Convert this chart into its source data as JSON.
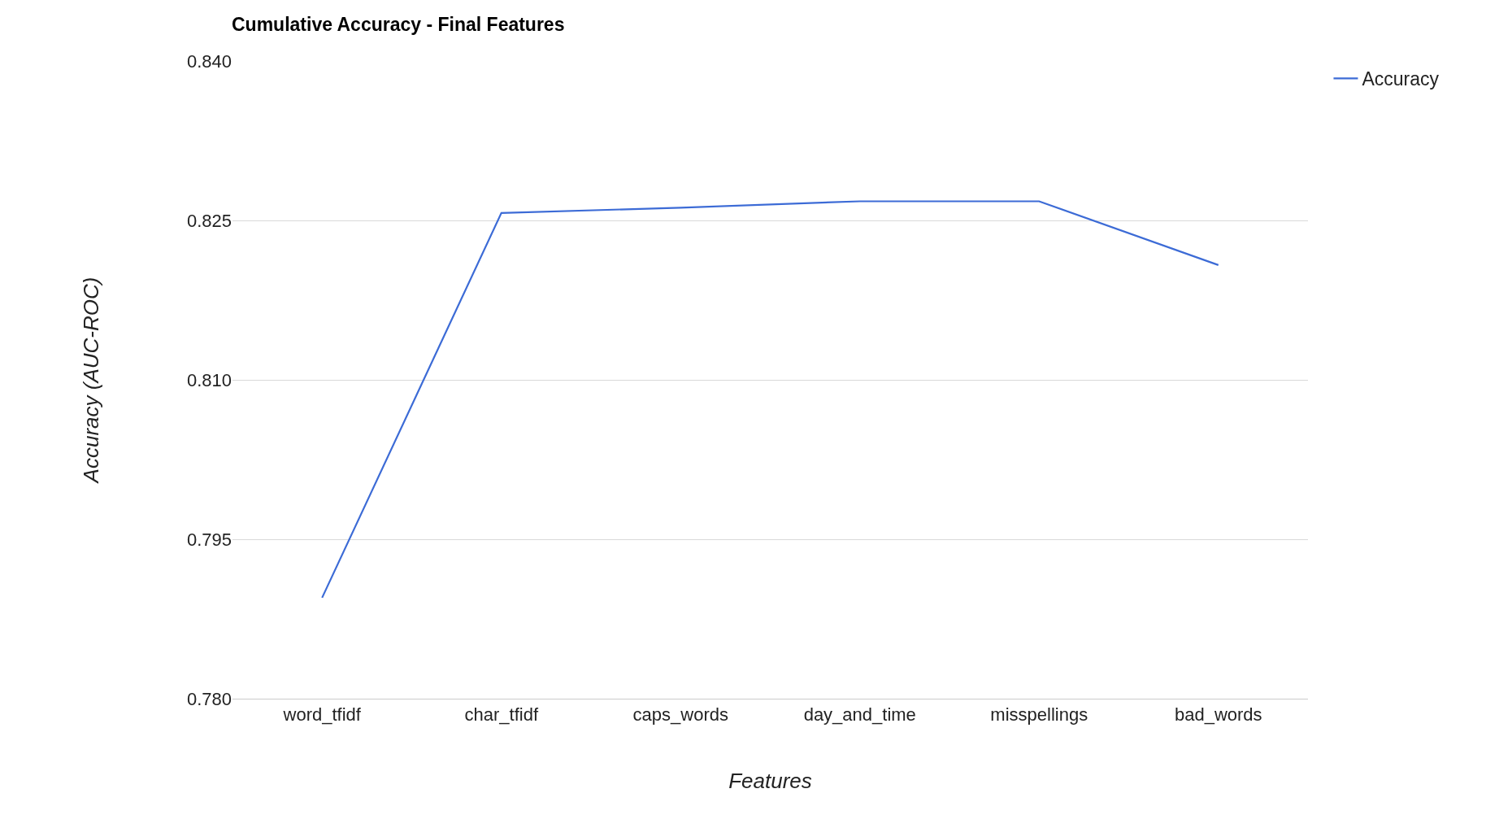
{
  "chart_data": {
    "type": "line",
    "title": "Cumulative Accuracy - Final Features",
    "xlabel": "Features",
    "ylabel": "Accuracy (AUC-ROC)",
    "categories": [
      "word_tfidf",
      "char_tfidf",
      "caps_words",
      "day_and_time",
      "misspellings",
      "bad_words"
    ],
    "series": [
      {
        "name": "Accuracy",
        "color": "#3c6bd6",
        "values": [
          0.7895,
          0.8257,
          0.8262,
          0.8268,
          0.8268,
          0.8208
        ]
      }
    ],
    "ylim": [
      0.78,
      0.84
    ],
    "yticks": [
      {
        "value": 0.78,
        "label": "0.780"
      },
      {
        "value": 0.795,
        "label": "0.795"
      },
      {
        "value": 0.81,
        "label": "0.810"
      },
      {
        "value": 0.825,
        "label": "0.825"
      },
      {
        "value": 0.84,
        "label": "0.840"
      }
    ],
    "grid": "y",
    "legend": "top right",
    "marker": "none",
    "line_style": "solid"
  }
}
